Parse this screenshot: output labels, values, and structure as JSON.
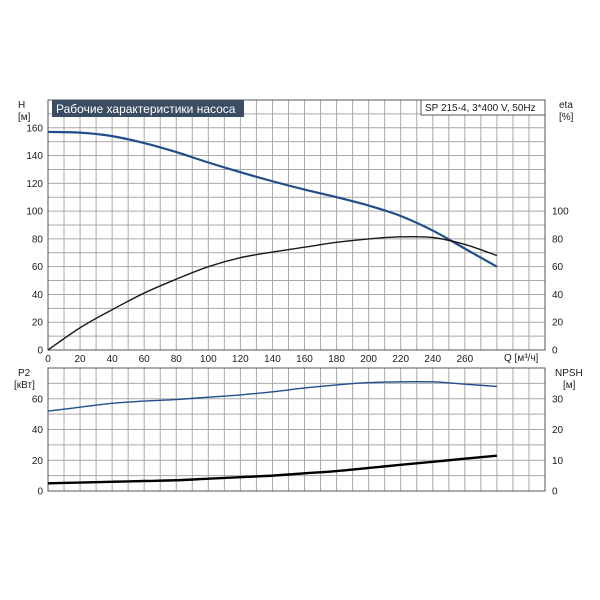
{
  "chart_data": [
    {
      "type": "line",
      "title": "Рабочие характеристики насоса",
      "subtitle": "SP 215-4, 3*400 V, 50Hz",
      "xlabel": "Q [м³/ч]",
      "ylabel_left": [
        "H",
        "[м]"
      ],
      "ylabel_right": [
        "eta",
        "[%]"
      ],
      "x_ticks": [
        "0",
        "20",
        "40",
        "60",
        "80",
        "100",
        "120",
        "140",
        "160",
        "180",
        "200",
        "220",
        "240",
        "260"
      ],
      "y_left_ticks": [
        "0",
        "20",
        "40",
        "60",
        "80",
        "100",
        "120",
        "140",
        "160"
      ],
      "y_right_ticks": [
        "0",
        "20",
        "40",
        "60",
        "80",
        "100"
      ],
      "xlim": [
        0,
        310
      ],
      "ylim_left": [
        0,
        180
      ],
      "ylim_right": [
        0,
        180
      ],
      "grid": true,
      "series": [
        {
          "axis": "left",
          "color": "#1f4e8c",
          "x": [
            0,
            20,
            40,
            60,
            80,
            100,
            120,
            140,
            160,
            180,
            200,
            220,
            240,
            260,
            280
          ],
          "y": [
            157,
            156.5,
            154,
            149,
            142.5,
            135,
            128,
            121.5,
            115.5,
            110,
            104,
            96.5,
            86,
            73,
            60
          ]
        },
        {
          "axis": "right",
          "color": "#1a1a1a",
          "x": [
            0,
            20,
            40,
            60,
            80,
            100,
            120,
            140,
            160,
            180,
            200,
            220,
            240,
            260,
            280
          ],
          "y": [
            0,
            16,
            29,
            41,
            51,
            60,
            66.5,
            70.5,
            74,
            77.5,
            80,
            81.5,
            81,
            76,
            68
          ]
        }
      ]
    },
    {
      "type": "line",
      "ylabel_left": [
        "P2",
        "[кВт]"
      ],
      "ylabel_right": [
        "NPSH",
        "[м]"
      ],
      "y_left_ticks": [
        "0",
        "20",
        "40",
        "60"
      ],
      "y_right_ticks": [
        "0",
        "10",
        "20",
        "30"
      ],
      "xlim": [
        0,
        310
      ],
      "ylim_left": [
        0,
        80
      ],
      "ylim_right": [
        0,
        40
      ],
      "grid": true,
      "series": [
        {
          "axis": "left",
          "color": "#1f4e8c",
          "x": [
            0,
            20,
            40,
            60,
            80,
            100,
            120,
            140,
            160,
            180,
            200,
            220,
            240,
            260,
            280
          ],
          "y": [
            52,
            54.5,
            57,
            58.5,
            59.5,
            61,
            62.5,
            64.5,
            67,
            69,
            70.5,
            71,
            71,
            69.5,
            68
          ]
        },
        {
          "axis": "left",
          "color": "#000000",
          "x": [
            0,
            20,
            40,
            60,
            80,
            100,
            120,
            140,
            160,
            180,
            200,
            220,
            240,
            260,
            280
          ],
          "y": [
            5,
            5.5,
            6,
            6.5,
            7,
            8,
            9,
            10,
            11.5,
            13,
            15,
            17,
            19,
            21,
            23
          ]
        }
      ]
    }
  ]
}
